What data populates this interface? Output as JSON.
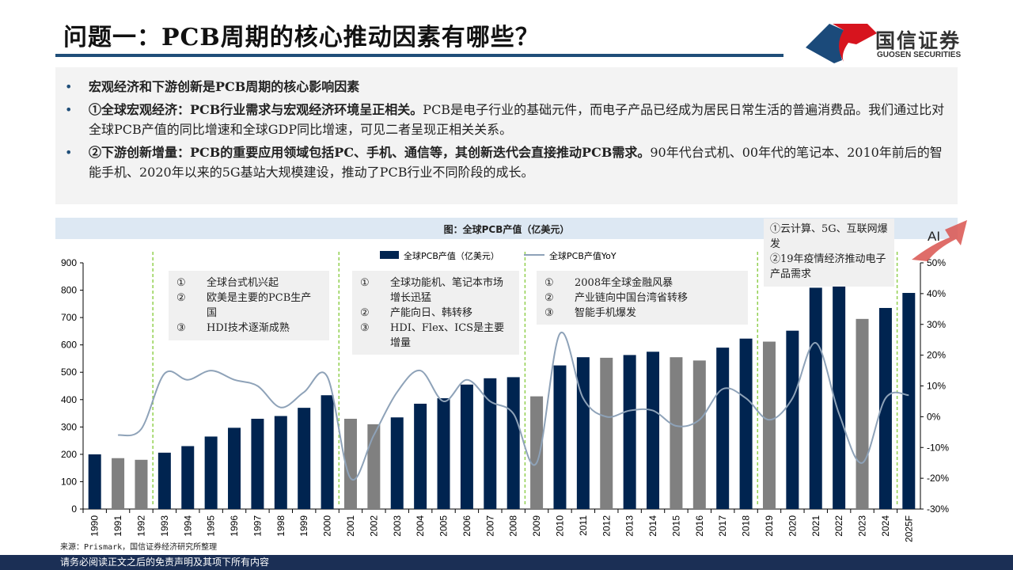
{
  "header": {
    "title": "问题一：PCB周期的核心推动因素有哪些？",
    "brand_cn": "国信证券",
    "brand_en": "GUOSEN SECURITIES"
  },
  "bullets": [
    {
      "bold": "宏观经济和下游创新是PCB周期的核心影响因素",
      "text": ""
    },
    {
      "bold": "①全球宏观经济：PCB行业需求与宏观经济环境呈正相关。",
      "text": "PCB是电子行业的基础元件，而电子产品已经成为居民日常生活的普遍消费品。我们通过比对全球PCB产值的同比增速和全球GDP同比增速，可见二者呈现正相关关系。"
    },
    {
      "bold": "②下游创新增量：PCB的重要应用领域包括PC、手机、通信等，其创新迭代会直接推动PCB需求。",
      "text": "90年代台式机、00年代的笔记本、2010年前后的智能手机、2020年以来的5G基站大规模建设，推动了PCB行业不同阶段的成长。"
    }
  ],
  "bullet_symbol": "•",
  "notes": [
    {
      "items": [
        {
          "n": "①",
          "t": "全球台式机兴起"
        },
        {
          "n": "②",
          "t": "欧美是主要的PCB生产国"
        },
        {
          "n": "③",
          "t": "HDI技术逐渐成熟"
        }
      ]
    },
    {
      "items": [
        {
          "n": "①",
          "t": "全球功能机、笔记本市场增长迅猛"
        },
        {
          "n": "②",
          "t": "产能向日、韩转移"
        },
        {
          "n": "③",
          "t": "HDI、Flex、ICS是主要增量"
        }
      ]
    },
    {
      "items": [
        {
          "n": "①",
          "t": "2008年全球金融风暴"
        },
        {
          "n": "②",
          "t": "产业链向中国台湾省转移"
        },
        {
          "n": "③",
          "t": "智能手机爆发"
        }
      ]
    },
    {
      "items": [
        {
          "n": "",
          "t": "①云计算、5G、互联网爆发"
        },
        {
          "n": "",
          "t": "②19年疫情经济推动电子产品需求"
        }
      ]
    }
  ],
  "ai_label": "AI",
  "source": "来源：Prismark，国信证券经济研究所整理",
  "footer": "请务必阅读正文之后的免责声明及其项下所有内容",
  "colors": {
    "bar_main": "#002450",
    "bar_down": "#808080",
    "line": "#8ea2b8",
    "accent": "#1f4e79",
    "divider": "#92d050"
  },
  "chart_data": {
    "type": "bar",
    "title": "图：全球PCB产值（亿美元）",
    "categories": [
      "1990",
      "1991",
      "1992",
      "1993",
      "1994",
      "1995",
      "1996",
      "1997",
      "1998",
      "1999",
      "2000",
      "2001",
      "2002",
      "2003",
      "2004",
      "2005",
      "2006",
      "2007",
      "2008",
      "2009",
      "2010",
      "2011",
      "2012",
      "2013",
      "2014",
      "2015",
      "2016",
      "2017",
      "2018",
      "2019",
      "2020",
      "2021",
      "2022",
      "2023",
      "2024",
      "2025F"
    ],
    "series": [
      {
        "name": "全球PCB产值（亿美元）",
        "type": "bar",
        "axis": "left",
        "values": [
          200,
          186,
          180,
          206,
          230,
          265,
          297,
          330,
          340,
          370,
          416,
          330,
          310,
          335,
          385,
          405,
          455,
          478,
          482,
          412,
          525,
          555,
          553,
          563,
          575,
          555,
          543,
          590,
          623,
          612,
          652,
          809,
          817,
          695,
          735,
          790
        ],
        "gray_years": [
          "1991",
          "1992",
          "2001",
          "2002",
          "2009",
          "2012",
          "2015",
          "2016",
          "2019",
          "2023"
        ]
      },
      {
        "name": "全球PCB产值YoY",
        "type": "line",
        "axis": "right",
        "values": [
          null,
          -6,
          -4,
          14,
          12,
          15,
          12,
          10,
          3,
          8,
          13,
          -20,
          -6,
          8,
          15,
          5,
          12,
          5,
          1,
          -15,
          27,
          6,
          0,
          2,
          2,
          -3,
          -1,
          9,
          6,
          -1,
          6,
          24,
          1,
          -15,
          6,
          7
        ]
      }
    ],
    "ylim_left": [
      0,
      900
    ],
    "yticks_left": [
      0,
      100,
      200,
      300,
      400,
      500,
      600,
      700,
      800,
      900
    ],
    "ylim_right": [
      -30,
      50
    ],
    "yticks_right": [
      "-30%",
      "-20%",
      "-10%",
      "0%",
      "10%",
      "20%",
      "30%",
      "40%",
      "50%"
    ],
    "period_dividers_after": [
      "1992",
      "2000",
      "2008",
      "2018",
      "2024"
    ],
    "legend": "top-center"
  }
}
